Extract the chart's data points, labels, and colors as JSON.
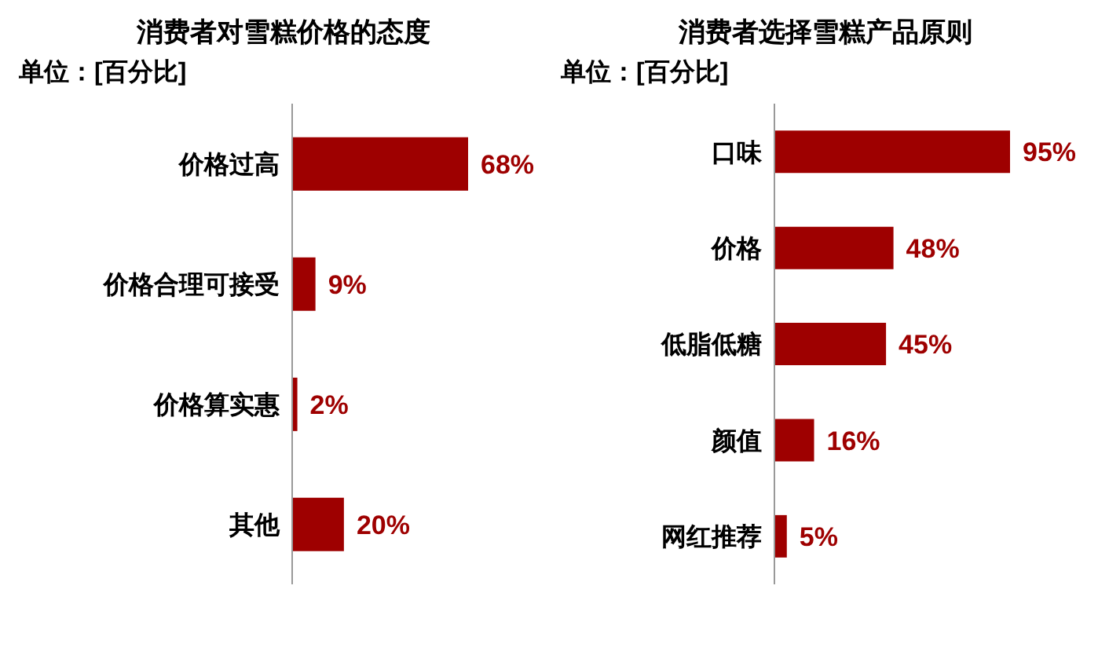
{
  "chart_data": [
    {
      "type": "bar",
      "orientation": "horizontal",
      "title": "消费者对雪糕价格的态度",
      "subtitle": "单位：[百分比]",
      "categories": [
        "价格过高",
        "价格合理可接受",
        "价格算实惠",
        "其他"
      ],
      "values": [
        68,
        9,
        2,
        20
      ],
      "value_labels": [
        "68%",
        "9%",
        "2%",
        "20%"
      ],
      "color": "#9e0000"
    },
    {
      "type": "bar",
      "orientation": "horizontal",
      "title": "消费者选择雪糕产品原则",
      "subtitle": "单位：[百分比]",
      "categories": [
        "口味",
        "价格",
        "低脂低糖",
        "颜值",
        "网红推荐"
      ],
      "values": [
        95,
        48,
        45,
        16,
        5
      ],
      "value_labels": [
        "95%",
        "48%",
        "45%",
        "16%",
        "5%"
      ],
      "color": "#9e0000"
    }
  ]
}
